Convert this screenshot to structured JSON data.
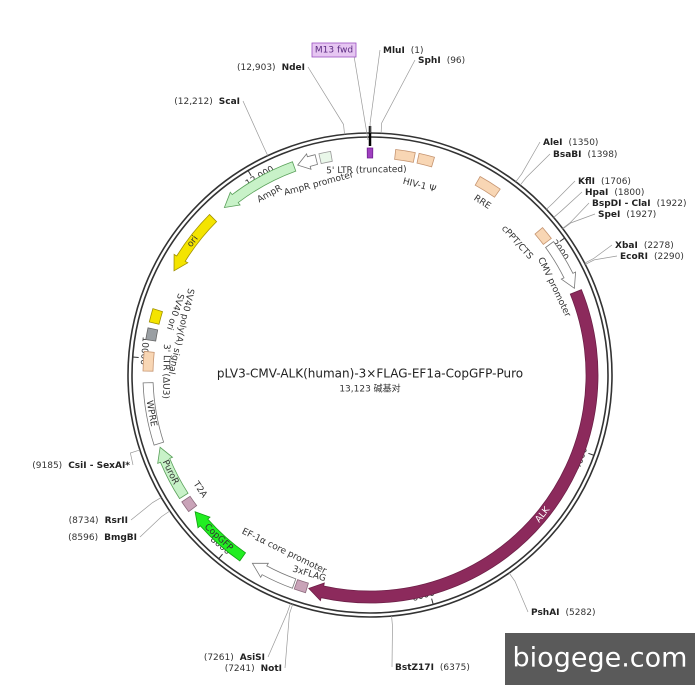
{
  "map": {
    "title": "pLV3-CMV-ALK(human)-3×FLAG-EF1a-CopGFP-Puro",
    "length": {
      "value": 13123,
      "label": "13,123 碱基对"
    },
    "scale_ticks": [
      2000,
      4000,
      6000,
      8000,
      10000,
      {
        "value": 12000,
        "label": "12,000"
      }
    ],
    "sites": [
      {
        "name": "MluI",
        "position": {
          "value": 1,
          "label": "(1)"
        }
      },
      {
        "name": "SphI",
        "position": {
          "value": 96,
          "label": "(96)"
        }
      },
      {
        "name": "AleI",
        "position": {
          "value": 1350,
          "label": "(1350)"
        }
      },
      {
        "name": "BsaBI",
        "position": {
          "value": 1398,
          "label": "(1398)"
        }
      },
      {
        "name": "KflI",
        "position": {
          "value": 1706,
          "label": "(1706)"
        }
      },
      {
        "name": "HpaI",
        "position": {
          "value": 1800,
          "label": "(1800)"
        }
      },
      {
        "name": "BspDI - ClaI",
        "position": {
          "value": 1922,
          "label": "(1922)"
        }
      },
      {
        "name": "SpeI",
        "position": {
          "value": 1927,
          "label": "(1927)"
        }
      },
      {
        "name": "XbaI",
        "position": {
          "value": 2278,
          "label": "(2278)"
        }
      },
      {
        "name": "EcoRI",
        "position": {
          "value": 2290,
          "label": "(2290)"
        }
      },
      {
        "name": "PshAI",
        "position": {
          "value": 5282,
          "label": "(5282)"
        }
      },
      {
        "name": "BstZ17I",
        "position": {
          "value": 6375,
          "label": "(6375)"
        }
      },
      {
        "name": "NotI",
        "position": {
          "value": 7241,
          "label": "(7241)"
        }
      },
      {
        "name": "AsiSI",
        "position": {
          "value": 7261,
          "label": "(7261)"
        }
      },
      {
        "name": "BmgBI",
        "position": {
          "value": 8596,
          "label": "(8596)"
        }
      },
      {
        "name": "RsrII",
        "position": {
          "value": 8734,
          "label": "(8734)"
        }
      },
      {
        "name": "CsiI - SexAI*",
        "position": {
          "value": 9185,
          "label": "(9185)"
        }
      },
      {
        "name": "ScaI",
        "position": {
          "value": 12212,
          "label": "(12,212)"
        }
      },
      {
        "name": "NdeI",
        "position": {
          "value": 12903,
          "label": "(12,903)"
        }
      }
    ],
    "features": [
      {
        "label": "5' LTR (truncated)"
      },
      {
        "label": "HIV-1 Ψ"
      },
      {
        "label": "RRE"
      },
      {
        "label": "cPPT/CTS"
      },
      {
        "label": "CMV promoter"
      },
      {
        "label": "ALK"
      },
      {
        "label": "3xFLAG"
      },
      {
        "label": "EF-1α core promoter"
      },
      {
        "label": "CopGFP"
      },
      {
        "label": "T2A"
      },
      {
        "label": "PuroR"
      },
      {
        "label": "WPRE"
      },
      {
        "label": "3' LTR (ΔU3)"
      },
      {
        "label": "SV40 poly(A) signal"
      },
      {
        "label": "SV40 ori"
      },
      {
        "label": "ori"
      },
      {
        "label": "AmpR"
      },
      {
        "label": "AmpR promoter"
      },
      {
        "label": "M13 fwd"
      }
    ]
  },
  "watermark": "biogege.com"
}
